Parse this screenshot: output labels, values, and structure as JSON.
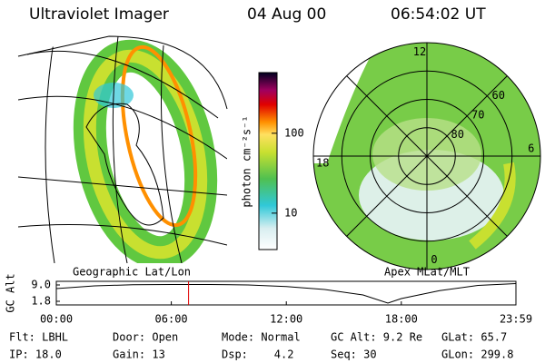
{
  "header": {
    "title": "Ultraviolet Imager",
    "date": "04 Aug 00",
    "time": "06:54:02 UT"
  },
  "left_panel": {
    "label": "Geographic Lat/Lon"
  },
  "right_panel": {
    "label": "Apex MLat/MLT",
    "lat_lim": [
      50,
      90
    ],
    "mlt_labels": [
      {
        "value": 12,
        "label": "12"
      },
      {
        "value": 6,
        "label": "6"
      },
      {
        "value": 0,
        "label": "0"
      },
      {
        "value": 18,
        "label": "18"
      }
    ],
    "lat_labels": [
      60,
      70,
      80
    ]
  },
  "colorbar": {
    "label": "photon cm⁻²s⁻¹",
    "scale": "log",
    "lim": [
      3.5,
      575
    ],
    "ticks": [
      10,
      100
    ]
  },
  "altitude_chart": {
    "ylabel": "GC Alt",
    "ylim": [
      0.2,
      10.6
    ],
    "yticks": [
      {
        "value": 9,
        "label": "9.0"
      },
      {
        "value": 1.8,
        "label": "1.8"
      }
    ],
    "xlim": [
      0,
      23.98
    ],
    "xticks": [
      {
        "value": 0,
        "label": "00:00"
      },
      {
        "value": 6,
        "label": "06:00"
      },
      {
        "value": 12,
        "label": "12:00"
      },
      {
        "value": 18,
        "label": "18:00"
      },
      {
        "value": 23.98,
        "label": "23:59"
      }
    ],
    "x": [
      0,
      2,
      4,
      6,
      7,
      8,
      10,
      12,
      14,
      16,
      17.3,
      18,
      20,
      22,
      23.98
    ],
    "values": [
      7.4,
      8.6,
      9.1,
      9.2,
      9.2,
      9.2,
      9.0,
      8.3,
      7.0,
      4.6,
      1.0,
      3.0,
      6.5,
      8.8,
      9.6
    ],
    "current_time": 6.9,
    "color": "#000000",
    "marker_color": "#e00000"
  },
  "footer": {
    "rows": [
      [
        "Flt: LBHL",
        "Door: Open",
        "Mode: Normal",
        "GC Alt: 9.2 Re",
        "GLat: 65.7"
      ],
      [
        "IP: 18.0",
        "Gain: 13",
        "Dsp:    4.2",
        "Seq: 30",
        "GLon: 299.8"
      ]
    ]
  }
}
